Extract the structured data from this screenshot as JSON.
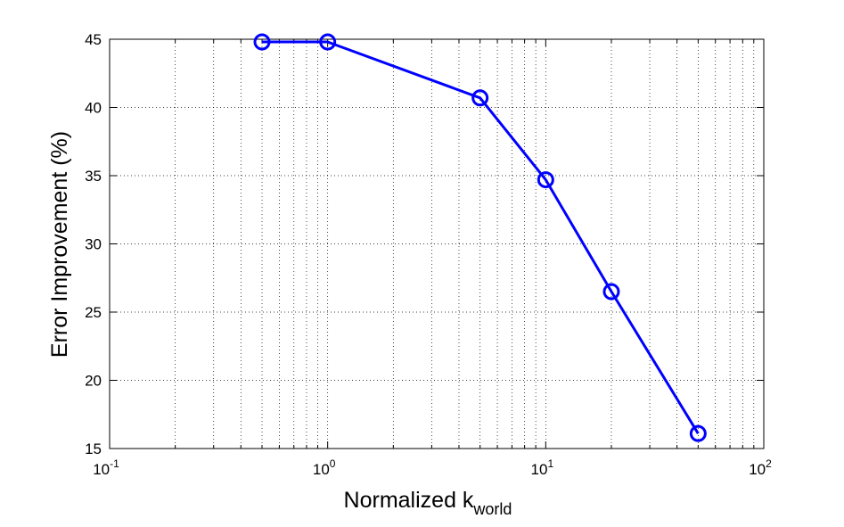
{
  "chart_data": {
    "type": "line",
    "title": "",
    "xlabel": {
      "main": "Normalized k",
      "subscript": "world"
    },
    "ylabel": "Error Improvement (%)",
    "x_scale": "log",
    "xlim": [
      0.1,
      100
    ],
    "ylim": [
      15,
      45
    ],
    "grid": true,
    "grid_style": "dotted",
    "x_ticks": [
      {
        "value": 0.1,
        "base": "10",
        "exp": "-1"
      },
      {
        "value": 1,
        "base": "10",
        "exp": "0"
      },
      {
        "value": 10,
        "base": "10",
        "exp": "1"
      },
      {
        "value": 100,
        "base": "10",
        "exp": "2"
      }
    ],
    "y_ticks": [
      "15",
      "20",
      "25",
      "30",
      "35",
      "40",
      "45"
    ],
    "series": [
      {
        "color": "#0000ff",
        "marker": "circle",
        "x": [
          0.5,
          1,
          5,
          10,
          20,
          50
        ],
        "y": [
          44.8,
          44.8,
          40.7,
          34.7,
          26.5,
          16.1
        ]
      }
    ]
  }
}
